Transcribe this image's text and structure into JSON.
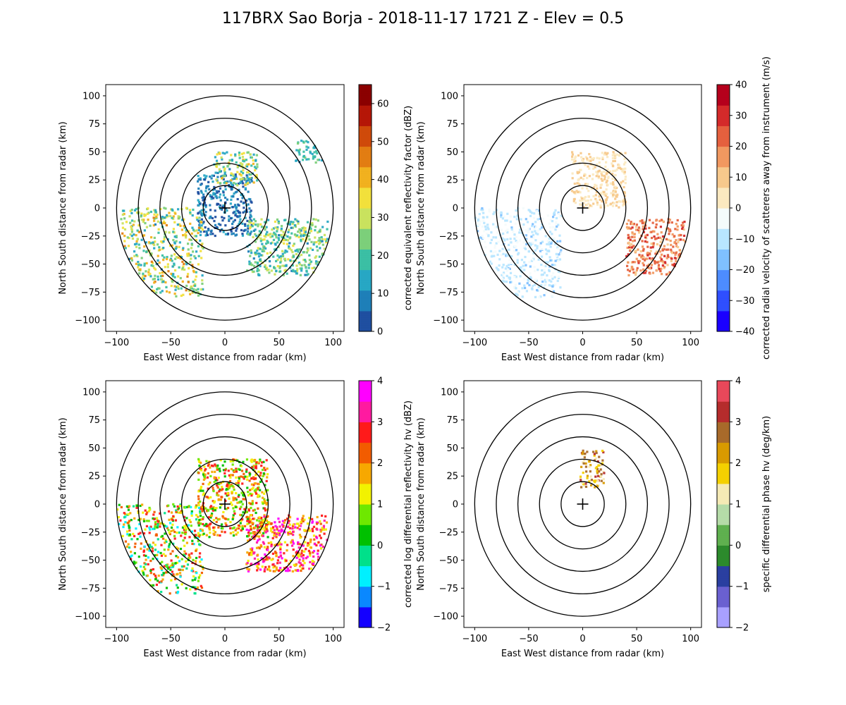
{
  "figure": {
    "title": "117BRX Sao Borja - 2018-11-17 1721 Z -  Elev = 0.5"
  },
  "chart_data": [
    {
      "type": "ppi",
      "panel": "top-left",
      "xlabel": "East West distance from radar (km)",
      "ylabel": "North South distance from radar (km)",
      "xlim": [
        -110,
        110
      ],
      "ylim": [
        -110,
        110
      ],
      "xticks": [
        -100,
        -50,
        0,
        50,
        100
      ],
      "yticks": [
        -100,
        -75,
        -50,
        -25,
        0,
        25,
        50,
        75,
        100
      ],
      "range_rings_km": [
        20,
        40,
        60,
        80,
        100
      ],
      "colorbar": {
        "label": "corrected equivalent reflectivity factor (dBZ)",
        "min": 0,
        "max": 65,
        "ticks": [
          0,
          10,
          20,
          30,
          40,
          50,
          60
        ],
        "colormap": "HomeyerRainbow",
        "colors": [
          "#1f4fa0",
          "#1e7fb8",
          "#27a7c4",
          "#3bbfa4",
          "#7ccf7a",
          "#c9e25e",
          "#f2e03b",
          "#f1b11f",
          "#e27d12",
          "#cf4a0a",
          "#b51607",
          "#8b0000"
        ]
      },
      "echoes": [
        {
          "region": "near radar ring",
          "x": [
            -25,
            25
          ],
          "y": [
            -25,
            30
          ],
          "dbz": [
            0,
            15
          ]
        },
        {
          "region": "north band",
          "x": [
            -10,
            30
          ],
          "y": [
            20,
            50
          ],
          "dbz": [
            10,
            40
          ]
        },
        {
          "region": "west-southwest band",
          "x": [
            -100,
            -20
          ],
          "y": [
            -80,
            0
          ],
          "dbz": [
            10,
            45
          ]
        },
        {
          "region": "southeast band",
          "x": [
            20,
            95
          ],
          "y": [
            -60,
            -10
          ],
          "dbz": [
            10,
            35
          ]
        },
        {
          "region": "northeast fragment",
          "x": [
            65,
            95
          ],
          "y": [
            40,
            60
          ],
          "dbz": [
            10,
            25
          ]
        }
      ]
    },
    {
      "type": "ppi",
      "panel": "top-right",
      "xlabel": "East West distance from radar (km)",
      "ylabel": "North South distance from radar (km)",
      "xlim": [
        -110,
        110
      ],
      "ylim": [
        -110,
        110
      ],
      "xticks": [
        -100,
        -50,
        0,
        50,
        100
      ],
      "yticks": [
        -100,
        -75,
        -50,
        -25,
        0,
        25,
        50,
        75,
        100
      ],
      "range_rings_km": [
        20,
        40,
        60,
        80,
        100
      ],
      "colorbar": {
        "label": "corrected radial velocity of scatterers away from instrument (m/s)",
        "min": -40,
        "max": 40,
        "ticks": [
          -40,
          -30,
          -20,
          -10,
          0,
          10,
          20,
          30,
          40
        ],
        "colormap": "BuDRd18",
        "colors": [
          "#1a00ff",
          "#2f4fff",
          "#4d8cff",
          "#7fc0ff",
          "#b8e6ff",
          "#f4fbfb",
          "#fbe9c0",
          "#f7c98c",
          "#f19860",
          "#e5603e",
          "#d42a2a",
          "#b5001c"
        ]
      },
      "echoes": [
        {
          "region": "west (inbound)",
          "x": [
            -100,
            -20
          ],
          "y": [
            -80,
            0
          ],
          "velocity": [
            -15,
            -3
          ]
        },
        {
          "region": "north",
          "x": [
            -10,
            40
          ],
          "y": [
            0,
            50
          ],
          "velocity": [
            3,
            10
          ]
        },
        {
          "region": "southeast (outbound)",
          "x": [
            40,
            95
          ],
          "y": [
            -60,
            -10
          ],
          "velocity": [
            10,
            30
          ]
        }
      ]
    },
    {
      "type": "ppi",
      "panel": "bottom-left",
      "xlabel": "East West distance from radar (km)",
      "ylabel": "North South distance from radar (km)",
      "xlim": [
        -110,
        110
      ],
      "ylim": [
        -110,
        110
      ],
      "xticks": [
        -100,
        -50,
        0,
        50,
        100
      ],
      "yticks": [
        -100,
        -75,
        -50,
        -25,
        0,
        25,
        50,
        75,
        100
      ],
      "range_rings_km": [
        20,
        40,
        60,
        80,
        100
      ],
      "colorbar": {
        "label": "corrected log differential reflectivity hv (dBZ)",
        "min": -2,
        "max": 4,
        "ticks": [
          -2,
          -1,
          0,
          1,
          2,
          3,
          4
        ],
        "colormap": "LangRainbow",
        "colors": [
          "#1400ff",
          "#0a88ff",
          "#00f0ff",
          "#00e08a",
          "#00c000",
          "#6ee800",
          "#f2f200",
          "#f7a800",
          "#f25c00",
          "#ff1a1a",
          "#ff1aa0",
          "#ff00ff"
        ]
      },
      "echoes": [
        {
          "region": "near radar",
          "x": [
            -25,
            40
          ],
          "y": [
            -30,
            40
          ],
          "zdr": [
            0,
            3
          ]
        },
        {
          "region": "west-southwest band",
          "x": [
            -100,
            -20
          ],
          "y": [
            -80,
            0
          ],
          "zdr": [
            -1,
            3
          ]
        },
        {
          "region": "southeast band",
          "x": [
            20,
            95
          ],
          "y": [
            -60,
            -10
          ],
          "zdr": [
            1,
            4
          ]
        }
      ]
    },
    {
      "type": "ppi",
      "panel": "bottom-right",
      "xlabel": "East West distance from radar (km)",
      "ylabel": "North South distance from radar (km)",
      "xlim": [
        -110,
        110
      ],
      "ylim": [
        -110,
        110
      ],
      "xticks": [
        -100,
        -50,
        0,
        50,
        100
      ],
      "yticks": [
        -100,
        -75,
        -50,
        -25,
        0,
        25,
        50,
        75,
        100
      ],
      "range_rings_km": [
        20,
        40,
        60,
        80,
        100
      ],
      "colorbar": {
        "label": "specific differential phase hv (deg/km)",
        "min": -2,
        "max": 4,
        "ticks": [
          -2,
          -1,
          0,
          1,
          2,
          3,
          4
        ],
        "colormap": "Theodore16",
        "colors": [
          "#a8a0ff",
          "#6a60d0",
          "#2a3fa0",
          "#2c8a2c",
          "#5fb04f",
          "#b5dba8",
          "#f5eab5",
          "#f4d000",
          "#d89a00",
          "#a86a2a",
          "#b52c2c",
          "#e8485a"
        ]
      },
      "echoes": [
        {
          "region": "narrow north streak",
          "x": [
            -2,
            20
          ],
          "y": [
            15,
            48
          ],
          "kdp": [
            1,
            3.5
          ]
        }
      ]
    }
  ]
}
